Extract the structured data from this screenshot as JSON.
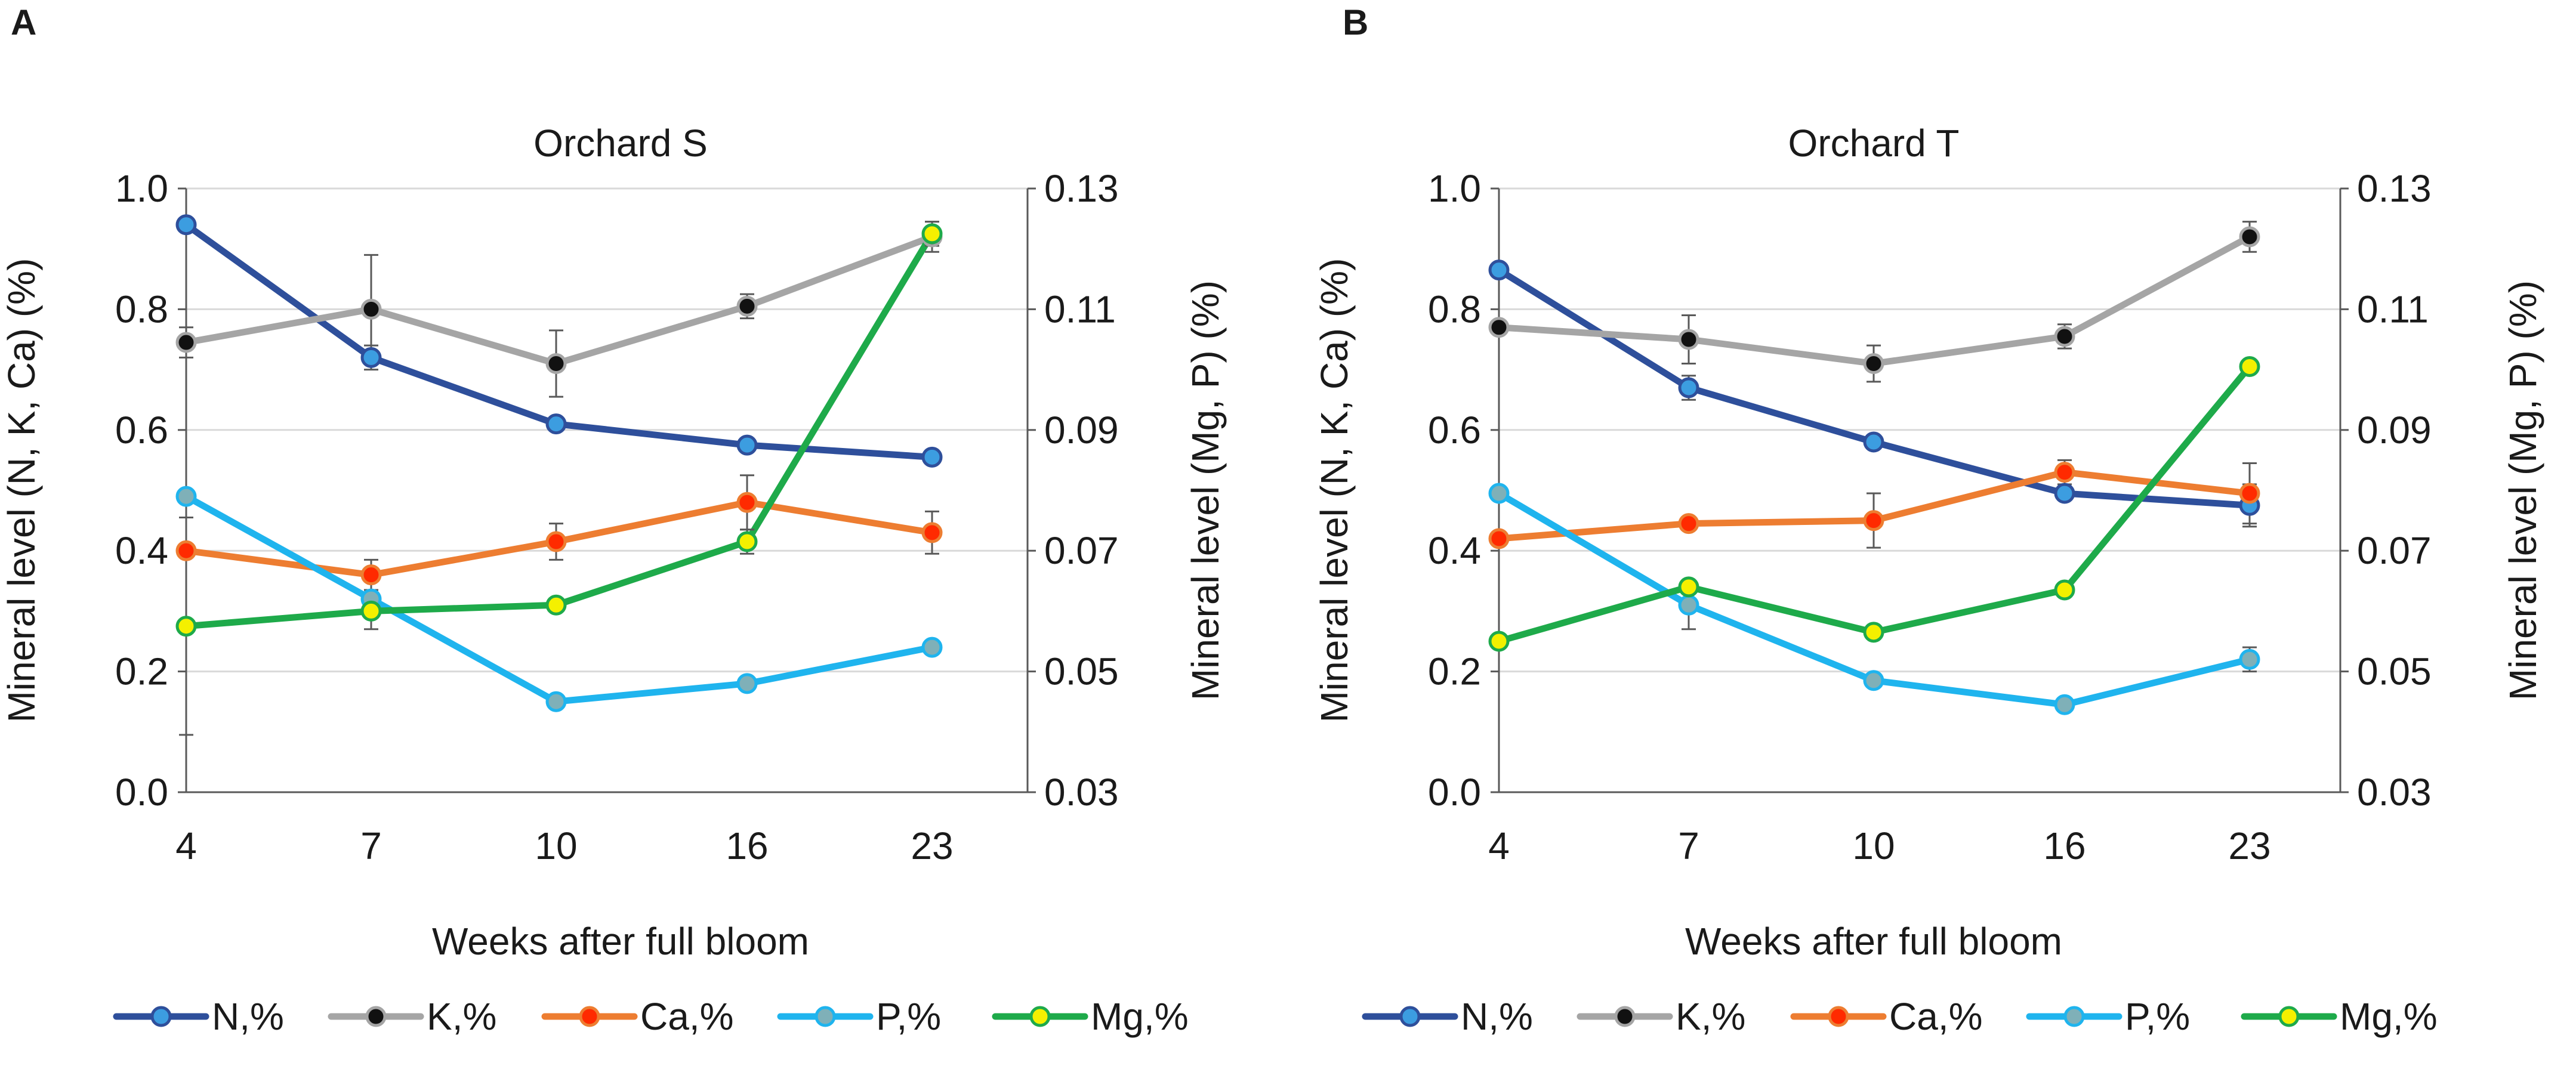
{
  "figure": {
    "x_axis_label": "Weeks after full bloom",
    "left_axis_label": "Mineral level (N, K, Ca) (%)",
    "right_axis_label": "Mineral level (Mg, P) (%)",
    "legend": [
      {
        "key": "N",
        "label": "N,%"
      },
      {
        "key": "K",
        "label": "K,%"
      },
      {
        "key": "Ca",
        "label": "Ca,%"
      },
      {
        "key": "P",
        "label": "P,%"
      },
      {
        "key": "Mg",
        "label": "Mg,%"
      }
    ]
  },
  "colors": {
    "N": {
      "line": "#2E4F9B",
      "marker": "#3C9DE0"
    },
    "K": {
      "line": "#A5A5A5",
      "marker": "#111111"
    },
    "Ca": {
      "line": "#ED7D31",
      "marker": "#FF2A00"
    },
    "P": {
      "line": "#1FB4EE",
      "marker": "#7FB0B8"
    },
    "Mg": {
      "line": "#1EAA4A",
      "marker": "#F4F000"
    }
  },
  "chart_data": [
    {
      "panel": "A",
      "type": "line",
      "title": "Orchard S",
      "xlabel": "Weeks after full bloom",
      "ylabel": "Mineral level (N, K, Ca) (%)",
      "y2label": "Mineral level (Mg, P) (%)",
      "categories": [
        "4",
        "7",
        "10",
        "16",
        "23"
      ],
      "ylim": [
        0.0,
        1.0
      ],
      "y_ticks": [
        "0.0",
        "0.2",
        "0.4",
        "0.6",
        "0.8",
        "1.0"
      ],
      "y2lim": [
        0.03,
        0.13
      ],
      "y2_ticks": [
        "0.03",
        "0.05",
        "0.07",
        "0.09",
        "0.11",
        "0.13"
      ],
      "grid": true,
      "series": [
        {
          "key": "N",
          "name": "N,%",
          "axis": "left",
          "values": [
            0.94,
            0.72,
            0.61,
            0.575,
            0.555
          ],
          "errors": [
            0,
            0.02,
            0,
            0,
            0
          ]
        },
        {
          "key": "K",
          "name": "K,%",
          "axis": "left",
          "values": [
            0.745,
            0.8,
            0.71,
            0.805,
            0.92
          ],
          "errors": [
            0.025,
            0.09,
            0.055,
            0.02,
            0.025
          ]
        },
        {
          "key": "Ca",
          "name": "Ca,%",
          "axis": "left",
          "values": [
            0.4,
            0.36,
            0.415,
            0.48,
            0.43
          ],
          "errors": [
            0,
            0.025,
            0.03,
            0.045,
            0.035
          ]
        },
        {
          "key": "P",
          "name": "P,%",
          "axis": "right",
          "values": [
            0.079,
            0.062,
            0.045,
            0.048,
            0.054
          ],
          "errors": [
            0,
            0.001,
            0,
            0,
            0.001
          ]
        },
        {
          "key": "Mg",
          "name": "Mg,%",
          "axis": "right",
          "values": [
            0.0575,
            0.06,
            0.061,
            0.0715,
            0.1225
          ],
          "errors": [
            0.018,
            0.003,
            0,
            0.002,
            0.002
          ]
        }
      ]
    },
    {
      "panel": "B",
      "type": "line",
      "title": "Orchard T",
      "xlabel": "Weeks after full bloom",
      "ylabel": "Mineral level (N, K, Ca) (%)",
      "y2label": "Mineral level (Mg, P) (%)",
      "categories": [
        "4",
        "7",
        "10",
        "16",
        "23"
      ],
      "ylim": [
        0.0,
        1.0
      ],
      "y_ticks": [
        "0.0",
        "0.2",
        "0.4",
        "0.6",
        "0.8",
        "1.0"
      ],
      "y2lim": [
        0.03,
        0.13
      ],
      "y2_ticks": [
        "0.03",
        "0.05",
        "0.07",
        "0.09",
        "0.11",
        "0.13"
      ],
      "grid": true,
      "series": [
        {
          "key": "N",
          "name": "N,%",
          "axis": "left",
          "values": [
            0.865,
            0.67,
            0.58,
            0.495,
            0.475
          ],
          "errors": [
            0,
            0.02,
            0,
            0,
            0.035
          ]
        },
        {
          "key": "K",
          "name": "K,%",
          "axis": "left",
          "values": [
            0.77,
            0.75,
            0.71,
            0.755,
            0.92
          ],
          "errors": [
            0,
            0.04,
            0.03,
            0.02,
            0.025
          ]
        },
        {
          "key": "Ca",
          "name": "Ca,%",
          "axis": "left",
          "values": [
            0.42,
            0.445,
            0.45,
            0.53,
            0.495
          ],
          "errors": [
            0,
            0,
            0.045,
            0.02,
            0.05
          ]
        },
        {
          "key": "P",
          "name": "P,%",
          "axis": "right",
          "values": [
            0.0795,
            0.061,
            0.0485,
            0.0445,
            0.052
          ],
          "errors": [
            0.001,
            0.004,
            0,
            0.001,
            0.002
          ]
        },
        {
          "key": "Mg",
          "name": "Mg,%",
          "axis": "right",
          "values": [
            0.055,
            0.064,
            0.0565,
            0.0635,
            0.1005
          ],
          "errors": [
            0,
            0,
            0,
            0,
            0
          ]
        }
      ]
    }
  ]
}
